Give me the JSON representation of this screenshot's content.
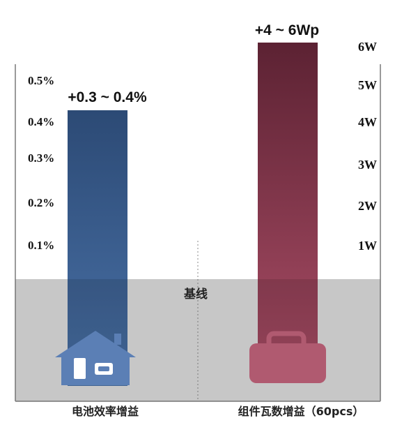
{
  "chart_data": {
    "type": "bar",
    "baseline_label": "基线",
    "categories": [
      "电池效率增益",
      "组件瓦数增益（60pcs）"
    ],
    "left_axis": {
      "ticks": [
        "0.1%",
        "0.2%",
        "0.3%",
        "0.4%",
        "0.5%"
      ],
      "tick_values": [
        0.1,
        0.2,
        0.3,
        0.4,
        0.5
      ],
      "ylim": [
        0,
        0.5
      ]
    },
    "right_axis": {
      "ticks": [
        "1W",
        "2W",
        "3W",
        "4W",
        "5W",
        "6W"
      ],
      "tick_values": [
        1,
        2,
        3,
        4,
        5,
        6
      ],
      "ylim": [
        0,
        6
      ]
    },
    "bars": [
      {
        "category": "电池效率增益",
        "value_label": "+0.3 ~ 0.4%",
        "range": [
          0.3,
          0.4
        ],
        "top": 0.4,
        "axis": "left",
        "color_top": "#2c4a75",
        "color_bottom": "#4a72a8",
        "icon": "house-icon"
      },
      {
        "category": "组件瓦数增益（60pcs）",
        "value_label": "+4 ~ 6Wp",
        "range": [
          4,
          6
        ],
        "top": 6,
        "axis": "right",
        "color_top": "#5c2233",
        "color_bottom": "#a44a62",
        "icon": "briefcase-icon"
      }
    ],
    "colors": {
      "baseline_band": "#e3e3e3",
      "axis": "#9a9a9a",
      "house_icon": "#5b7fb5",
      "briefcase_icon": "#b05a70"
    }
  }
}
